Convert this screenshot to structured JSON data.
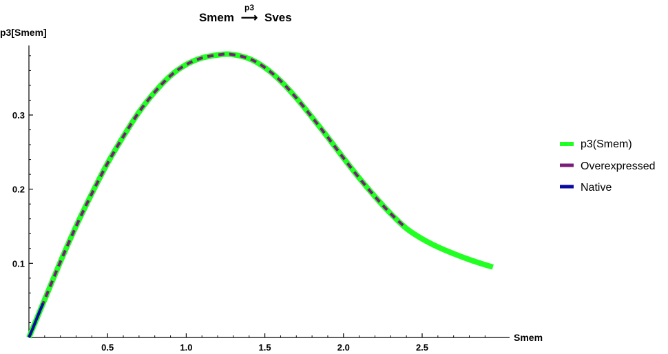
{
  "chart_data": {
    "type": "line",
    "title": {
      "source": "Smem",
      "arrow": "⟶",
      "arrow_label": "p3",
      "target": "Sves"
    },
    "xlabel": "Smem",
    "ylabel": "p3[Smem]",
    "xlim": [
      0,
      2.95
    ],
    "ylim": [
      0,
      0.39
    ],
    "x_ticks": [
      {
        "value": 0.5,
        "label": "0.5"
      },
      {
        "value": 1.0,
        "label": "1.0"
      },
      {
        "value": 1.5,
        "label": "1.5"
      },
      {
        "value": 2.0,
        "label": "2.0"
      },
      {
        "value": 2.5,
        "label": "2.5"
      }
    ],
    "y_ticks": [
      {
        "value": 0.1,
        "label": "0.1"
      },
      {
        "value": 0.2,
        "label": "0.2"
      },
      {
        "value": 0.3,
        "label": "0.3"
      }
    ],
    "grid": false,
    "legend_position": "right",
    "series": [
      {
        "name": "p3(Smem)",
        "color": "#22ff22",
        "style": "solid-thick",
        "x": [
          0,
          0.1,
          0.2,
          0.3,
          0.4,
          0.5,
          0.6,
          0.7,
          0.8,
          0.9,
          1.0,
          1.1,
          1.2,
          1.28,
          1.4,
          1.5,
          1.6,
          1.7,
          1.8,
          1.9,
          2.0,
          2.1,
          2.2,
          2.3,
          2.4,
          2.5,
          2.6,
          2.7,
          2.8,
          2.9,
          2.95
        ],
        "y": [
          0,
          0.051,
          0.102,
          0.15,
          0.194,
          0.235,
          0.271,
          0.304,
          0.331,
          0.353,
          0.368,
          0.377,
          0.381,
          0.382,
          0.376,
          0.364,
          0.346,
          0.323,
          0.297,
          0.27,
          0.242,
          0.215,
          0.19,
          0.167,
          0.147,
          0.133,
          0.122,
          0.113,
          0.105,
          0.098,
          0.095
        ]
      },
      {
        "name": "Overexpressed",
        "color": "#7a1d7a",
        "style": "dashed",
        "x": [
          0,
          0.1,
          0.2,
          0.3,
          0.4,
          0.5,
          0.6,
          0.7,
          0.8,
          0.9,
          1.0,
          1.1,
          1.2,
          1.28,
          1.4,
          1.5,
          1.6,
          1.7,
          1.8,
          1.9,
          2.0,
          2.1,
          2.2,
          2.3,
          2.4
        ],
        "y": [
          0,
          0.051,
          0.102,
          0.15,
          0.194,
          0.235,
          0.271,
          0.304,
          0.331,
          0.353,
          0.368,
          0.377,
          0.381,
          0.382,
          0.376,
          0.364,
          0.346,
          0.323,
          0.297,
          0.27,
          0.242,
          0.215,
          0.19,
          0.167,
          0.147
        ]
      },
      {
        "name": "Native",
        "color": "#0a0aa0",
        "style": "solid",
        "x": [
          0,
          0.03,
          0.06,
          0.09
        ],
        "y": [
          0,
          0.015,
          0.031,
          0.046
        ]
      }
    ]
  }
}
